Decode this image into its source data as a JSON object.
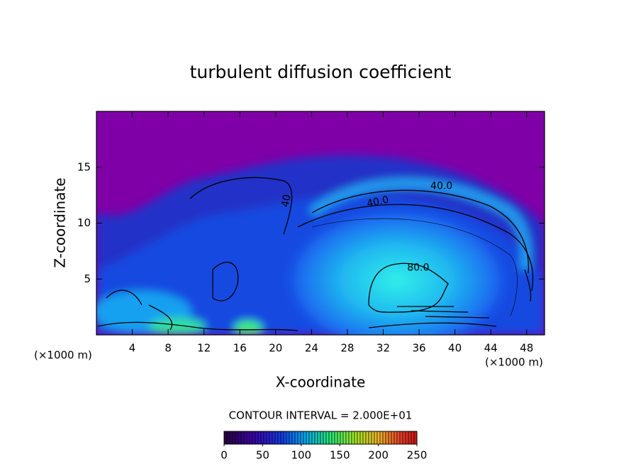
{
  "chart_data": {
    "type": "contour",
    "title": "turbulent diffusion coefficient",
    "x_label": "X-coordinate",
    "y_label": "Z-coordinate",
    "x_unit": "(×1000 m)",
    "y_unit": "(×1000 m)",
    "xlim": [
      0,
      50
    ],
    "ylim": [
      0,
      20
    ],
    "xticks": [
      4,
      8,
      12,
      16,
      20,
      24,
      28,
      32,
      36,
      40,
      44,
      48
    ],
    "yticks": [
      5,
      10,
      15
    ],
    "contour_interval_text": "CONTOUR INTERVAL = 2.000E+01",
    "contour_labels": [
      {
        "value": 40,
        "label": "40.0",
        "x": 38.5,
        "z": 13.3
      },
      {
        "value": 40,
        "label": "40.0",
        "x": 31.4,
        "z": 11.9
      },
      {
        "value": 40,
        "label": "40",
        "x": 21.2,
        "z": 12.0
      },
      {
        "value": 80,
        "label": "80.0",
        "x": 35.9,
        "z": 6.0
      }
    ],
    "colorbar": {
      "lim": [
        0,
        250
      ],
      "ticks": [
        0,
        50,
        100,
        150,
        200,
        250
      ]
    }
  }
}
